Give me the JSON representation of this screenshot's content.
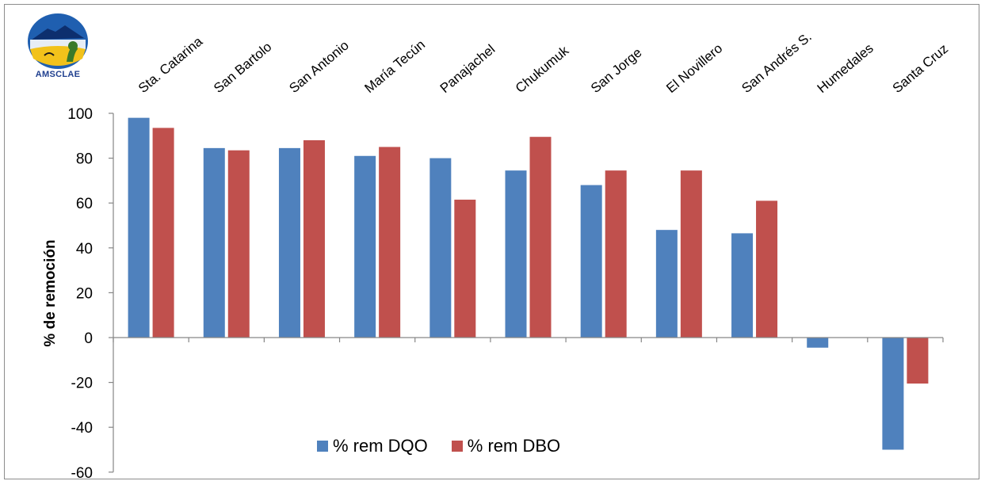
{
  "logo": {
    "text": "AMSCLAE",
    "colors": {
      "sky": "#1f5fb0",
      "water": "#1a3f8f",
      "land": "#f2c21b",
      "tree": "#3a7a2a"
    }
  },
  "chart_data": {
    "type": "bar",
    "title": "",
    "xlabel": "",
    "ylabel": "% de remoción",
    "ylim": [
      -60,
      100
    ],
    "yticks": [
      -60,
      -40,
      -20,
      0,
      20,
      40,
      60,
      80,
      100
    ],
    "categories": [
      "Sta. Catarina",
      "San Bartolo",
      "San Antonio",
      "María Tecún",
      "Panajachel",
      "Chukumuk",
      "San Jorge",
      "El Novillero",
      "San Andrés S.",
      "Humedales",
      "Santa Cruz"
    ],
    "category_label_position": "top",
    "grid": false,
    "legend_position": "bottom",
    "series": [
      {
        "name": "% rem DQO",
        "color": "#4f81bd",
        "values": [
          98,
          84.5,
          84.5,
          81,
          80,
          74.5,
          68,
          48,
          46.5,
          -4.5,
          -50
        ]
      },
      {
        "name": "% rem DBO",
        "color": "#c0504d",
        "values": [
          93.5,
          83.5,
          88,
          85,
          61.5,
          89.5,
          74.5,
          74.5,
          61,
          null,
          -20.5
        ]
      }
    ]
  }
}
